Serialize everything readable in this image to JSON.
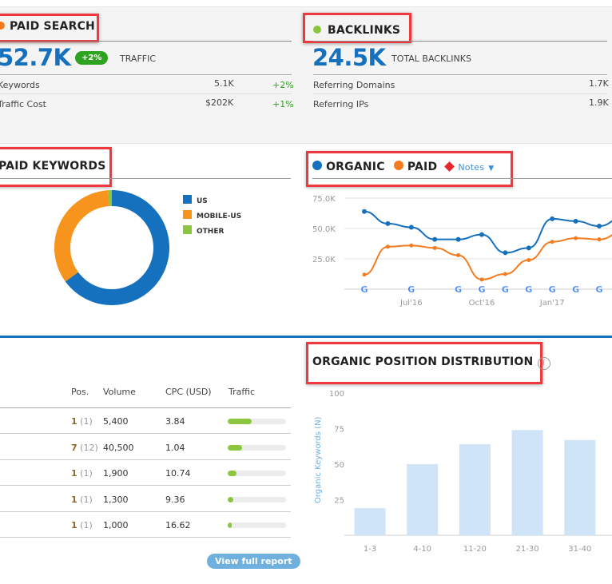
{
  "paid_search": {
    "title": "PAID SEARCH",
    "dot_color": "#f47b20",
    "traffic_value": "52.7K",
    "traffic_change": "+2%",
    "traffic_label": "TRAFFIC",
    "rows": [
      {
        "label": "Keywords",
        "value": "5.1K",
        "change": "+2%"
      },
      {
        "label": "Traffic Cost",
        "value": "$202K",
        "change": "+1%"
      }
    ]
  },
  "backlinks": {
    "title": "BACKLINKS",
    "dot_color": "#8cc63e",
    "total_value": "24.5K",
    "total_label": "TOTAL BACKLINKS",
    "rows": [
      {
        "label": "Referring Domains",
        "value": "1.7K"
      },
      {
        "label": "Referring IPs",
        "value": "1.9K"
      }
    ]
  },
  "paid_keywords": {
    "title": "PAID KEYWORDS"
  },
  "trend": {
    "organic_label": "ORGANIC",
    "paid_label": "PAID",
    "notes_label": "Notes",
    "organic_color": "#1570be",
    "paid_color": "#f47b20",
    "notes_color": "#e8242c"
  },
  "position_distribution": {
    "title": "ORGANIC POSITION DISTRIBUTION",
    "info_icon": "info-icon"
  },
  "keywords_table": {
    "headers": {
      "pos": "Pos.",
      "volume": "Volume",
      "cpc": "CPC (USD)",
      "traffic": "Traffic"
    },
    "rows": [
      {
        "pos": "1",
        "prev": "(1)",
        "volume": "5,400",
        "cpc": "3.84",
        "traffic_share": 0.41
      },
      {
        "pos": "7",
        "prev": "(12)",
        "volume": "40,500",
        "cpc": "1.04",
        "traffic_share": 0.25
      },
      {
        "pos": "1",
        "prev": "(1)",
        "volume": "1,900",
        "cpc": "10.74",
        "traffic_share": 0.15
      },
      {
        "pos": "1",
        "prev": "(1)",
        "volume": "1,300",
        "cpc": "9.36",
        "traffic_share": 0.09
      },
      {
        "pos": "1",
        "prev": "(1)",
        "volume": "1,000",
        "cpc": "16.62",
        "traffic_share": 0.07
      }
    ],
    "view_full_report": "View full report"
  },
  "chart_data": [
    {
      "type": "pie",
      "categories": [
        "US",
        "MOBILE-US",
        "OTHER"
      ],
      "values": [
        65,
        34,
        1
      ],
      "colors": [
        "#1570be",
        "#f7941d",
        "#8cc63e"
      ],
      "legend": "right"
    },
    {
      "type": "line",
      "x": [
        "May'16",
        "Jun'16",
        "Jul'16",
        "Aug'16",
        "Sep'16",
        "Oct'16",
        "Nov'16",
        "Dec'16",
        "Jan'17",
        "Feb'17",
        "Mar'17",
        "Apr'17"
      ],
      "x_tick_labels": [
        {
          "at": "Jul'16",
          "label": "Jul'16"
        },
        {
          "at": "Oct'16",
          "label": "Oct'16"
        },
        {
          "at": "Jan'17",
          "label": "Jan'17"
        },
        {
          "at": "Apr'17",
          "label": "A"
        }
      ],
      "y_tick_labels": [
        "25.0K",
        "50.0K",
        "75.0K"
      ],
      "ylim": [
        0,
        75000
      ],
      "grid": true,
      "series": [
        {
          "name": "ORGANIC",
          "color": "#1570be",
          "values": [
            64000,
            54000,
            51000,
            41000,
            41000,
            45000,
            30000,
            34000,
            58000,
            56000,
            52000,
            59000
          ]
        },
        {
          "name": "PAID",
          "color": "#f47b20",
          "values": [
            12000,
            35000,
            36000,
            34000,
            28000,
            8000,
            12500,
            24000,
            39000,
            42000,
            41000,
            47000
          ]
        }
      ],
      "google_update_markers": [
        "May'16",
        "Jul'16",
        "Sep'16",
        "Oct'16",
        "Nov'16",
        "Dec'16",
        "Jan'17",
        "Feb'17",
        "Mar'17",
        "Apr'17"
      ]
    },
    {
      "type": "bar",
      "categories": [
        "1-3",
        "4-10",
        "11-20",
        "21-30",
        "31-40"
      ],
      "values": [
        19,
        50,
        64,
        74,
        67
      ],
      "ylabel": "Organic Keywords (N)",
      "y_tick_labels": [
        "25",
        "50",
        "75",
        "100"
      ],
      "ylim": [
        0,
        100
      ],
      "color": "#cfe4f7"
    }
  ]
}
